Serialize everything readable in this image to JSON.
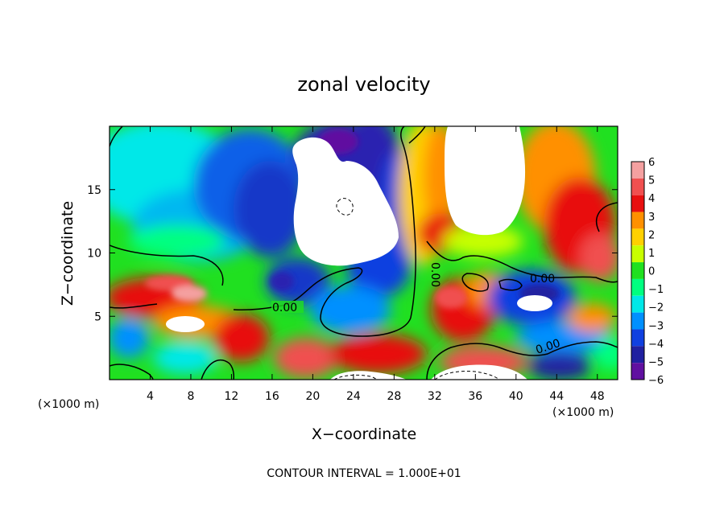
{
  "chart_data": {
    "type": "heatmap",
    "title": "zonal velocity",
    "xlabel": "X−coordinate",
    "ylabel": "Z−coordinate",
    "x_unit": "(×1000 m)",
    "y_unit": "(×1000 m)",
    "footer": "CONTOUR INTERVAL = 1.000E+01",
    "xlim": [
      0,
      50
    ],
    "ylim": [
      0,
      20
    ],
    "x_ticks": [
      4,
      8,
      12,
      16,
      20,
      24,
      28,
      32,
      36,
      40,
      44,
      48
    ],
    "y_ticks": [
      5,
      10,
      15
    ],
    "colorbar": {
      "levels": [
        6,
        5,
        4,
        3,
        2,
        1,
        0,
        -1,
        -2,
        -3,
        -4,
        -5,
        -6
      ],
      "colors": [
        "#f4a0a0",
        "#f05050",
        "#e81010",
        "#ff9000",
        "#ffd000",
        "#c8ff00",
        "#20e020",
        "#00ff80",
        "#00e8e8",
        "#0090ff",
        "#1040e0",
        "#2020a0",
        "#6010a0"
      ]
    },
    "contour_labels": [
      "0.00",
      "0.00",
      "0.00",
      "0.00"
    ],
    "grid": false,
    "legend": "right"
  }
}
